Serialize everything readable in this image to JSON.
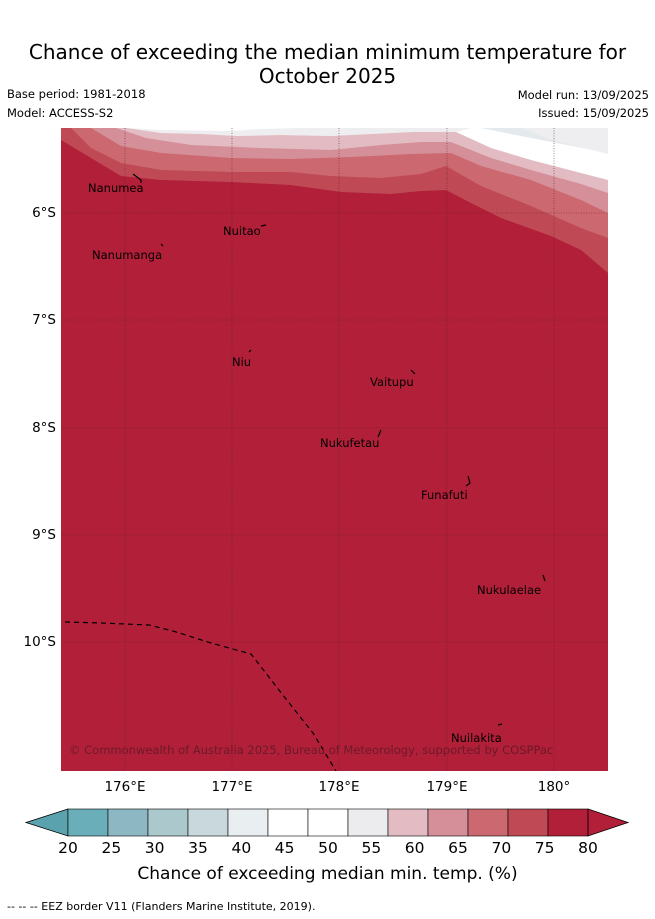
{
  "title_line1": "Chance of exceeding the median minimum temperature for",
  "title_line2": "October 2025",
  "base_period": "Base period: 1981-2018",
  "model": "Model: ACCESS-S2",
  "model_run": "Model run: 13/09/2025",
  "issued": "Issued: 15/09/2025",
  "y_ticks": [
    "6°S",
    "7°S",
    "8°S",
    "9°S",
    "10°S"
  ],
  "x_ticks": [
    "176°E",
    "177°E",
    "178°E",
    "179°E",
    "180°"
  ],
  "places": [
    "Nanumea",
    "Nuitao",
    "Nanumanga",
    "Niu",
    "Vaitupu",
    "Nukufetau",
    "Funafuti",
    "Nukulaelae",
    "Nuilakita"
  ],
  "copyright": "© Commonwealth of Australia 2025, Bureau of Meteorology, supported by COSPPac",
  "colorbar": {
    "ticks": [
      "20",
      "25",
      "30",
      "35",
      "40",
      "45",
      "50",
      "55",
      "60",
      "65",
      "70",
      "75",
      "80"
    ],
    "colors": [
      "#6aaeb9",
      "#8db8c3",
      "#abc8cc",
      "#c9d8dd",
      "#e9eef1",
      "#ffffff",
      "#ffffff",
      "#ecebee",
      "#e2bcc2",
      "#d58f98",
      "#cc6870",
      "#bf4a56",
      "#b21f38"
    ],
    "under_color": "#5aa3ae",
    "over_color": "#b21f38",
    "title": "Chance of exceeding median min. temp. (%)"
  },
  "footer": "--  --  -- EEZ border V11 (Flanders Marine Institute, 2019)."
}
